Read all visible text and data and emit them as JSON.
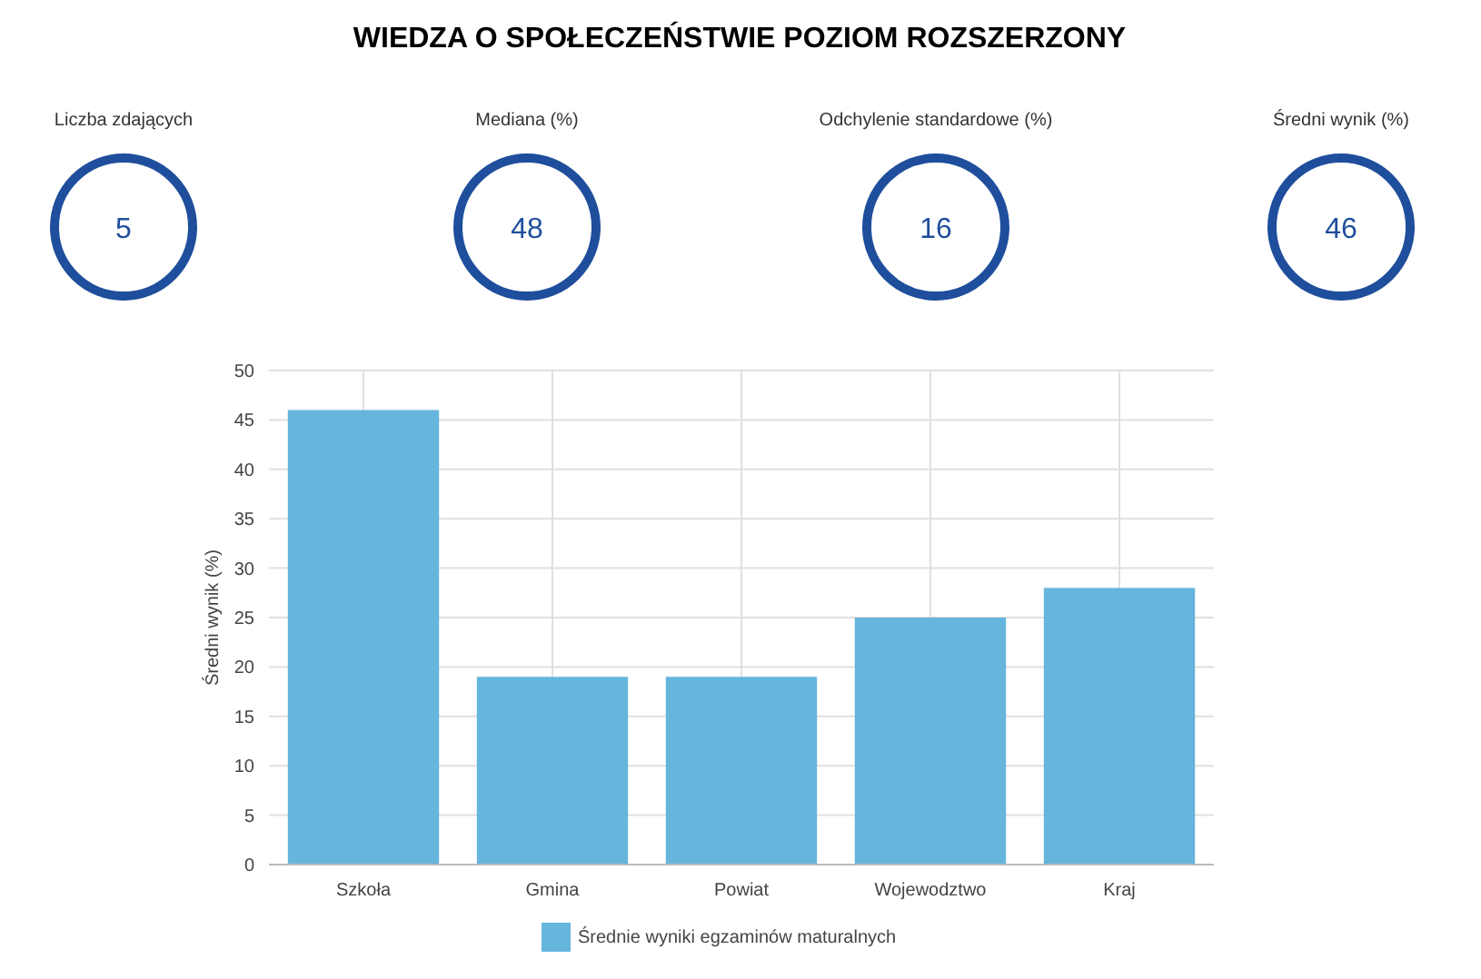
{
  "chart_data": [
    {
      "type": "other",
      "title": "WIEDZA O SPOŁECZEŃSTWIE POZIOM ROZSZERZONY",
      "categories": [
        "Liczba zdających",
        "Mediana (%)",
        "Odchylenie standardowe (%)",
        "Średni wynik (%)"
      ],
      "values": [
        5,
        48,
        16,
        46
      ],
      "data_labels": true,
      "color": "#1f4e9c"
    },
    {
      "type": "bar",
      "categories": [
        "Szkoła",
        "Gmina",
        "Powiat",
        "Wojewodztwo",
        "Kraj"
      ],
      "series": [
        {
          "name": "Średnie wyniki egzaminów maturalnych",
          "color": "#66b5dc",
          "values": [
            46,
            19,
            19,
            25,
            28
          ]
        }
      ],
      "ylabel": "Średni wynik (%)",
      "ylim": [
        0,
        50
      ],
      "yticks": [
        0,
        5,
        10,
        15,
        20,
        25,
        30,
        35,
        40,
        45,
        50
      ],
      "grid": true,
      "legend": "bottom"
    }
  ]
}
